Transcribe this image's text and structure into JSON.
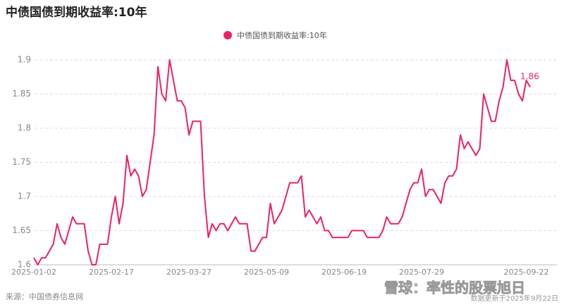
{
  "chart_data": {
    "type": "line",
    "title": "中债国债到期收益率:10年",
    "categories": [
      "2025-01-02",
      null,
      null,
      null,
      null,
      null,
      null,
      null,
      null,
      null,
      null,
      null,
      null,
      null,
      null,
      null,
      null,
      null,
      null,
      null,
      "2025-02-17",
      null,
      null,
      null,
      null,
      null,
      null,
      null,
      null,
      null,
      null,
      null,
      null,
      null,
      null,
      null,
      null,
      null,
      null,
      null,
      "2025-03-27",
      null,
      null,
      null,
      null,
      null,
      null,
      null,
      null,
      null,
      null,
      null,
      null,
      null,
      null,
      null,
      null,
      null,
      null,
      null,
      "2025-05-09",
      null,
      null,
      null,
      null,
      null,
      null,
      null,
      null,
      null,
      null,
      null,
      null,
      null,
      null,
      null,
      null,
      null,
      null,
      null,
      "2025-06-19",
      null,
      null,
      null,
      null,
      null,
      null,
      null,
      null,
      null,
      null,
      null,
      null,
      null,
      null,
      null,
      null,
      null,
      null,
      null,
      "2025-07-29",
      null,
      null,
      null,
      null,
      null,
      null,
      null,
      null,
      null,
      null,
      null,
      null,
      null,
      null,
      null,
      null,
      null,
      null,
      null,
      null,
      null,
      null,
      null,
      null,
      null,
      null,
      "2025-09-22",
      null
    ],
    "series": [
      {
        "name": "中债国债到期收益率:10年",
        "color": "#e8245f",
        "values": [
          1.61,
          1.6,
          1.61,
          1.61,
          1.62,
          1.63,
          1.66,
          1.64,
          1.63,
          1.65,
          1.67,
          1.66,
          1.66,
          1.66,
          1.62,
          1.6,
          1.6,
          1.63,
          1.63,
          1.63,
          1.67,
          1.7,
          1.66,
          1.69,
          1.76,
          1.73,
          1.74,
          1.73,
          1.7,
          1.71,
          1.75,
          1.79,
          1.89,
          1.85,
          1.84,
          1.9,
          1.87,
          1.84,
          1.84,
          1.83,
          1.79,
          1.81,
          1.81,
          1.81,
          1.7,
          1.64,
          1.66,
          1.65,
          1.66,
          1.66,
          1.65,
          1.66,
          1.67,
          1.66,
          1.66,
          1.66,
          1.62,
          1.62,
          1.63,
          1.64,
          1.64,
          1.69,
          1.66,
          1.67,
          1.68,
          1.7,
          1.72,
          1.72,
          1.72,
          1.73,
          1.67,
          1.68,
          1.67,
          1.66,
          1.67,
          1.65,
          1.65,
          1.64,
          1.64,
          1.64,
          1.64,
          1.64,
          1.65,
          1.65,
          1.65,
          1.65,
          1.64,
          1.64,
          1.64,
          1.64,
          1.65,
          1.67,
          1.66,
          1.66,
          1.66,
          1.67,
          1.69,
          1.71,
          1.72,
          1.72,
          1.74,
          1.7,
          1.71,
          1.71,
          1.7,
          1.69,
          1.72,
          1.73,
          1.73,
          1.74,
          1.79,
          1.77,
          1.78,
          1.77,
          1.76,
          1.77,
          1.85,
          1.83,
          1.81,
          1.81,
          1.84,
          1.86,
          1.9,
          1.87,
          1.87,
          1.85,
          1.84,
          1.87,
          1.86
        ]
      }
    ],
    "annotation": "1.86",
    "ylim": [
      1.6,
      1.9
    ],
    "yticks": [
      1.6,
      1.65,
      1.7,
      1.75,
      1.8,
      1.85,
      1.9
    ],
    "grid": true,
    "source": "来源：中国债券信息网",
    "updated": "数据更新于2025年9月22日",
    "watermark": "雪球：率性的股票旭日"
  }
}
